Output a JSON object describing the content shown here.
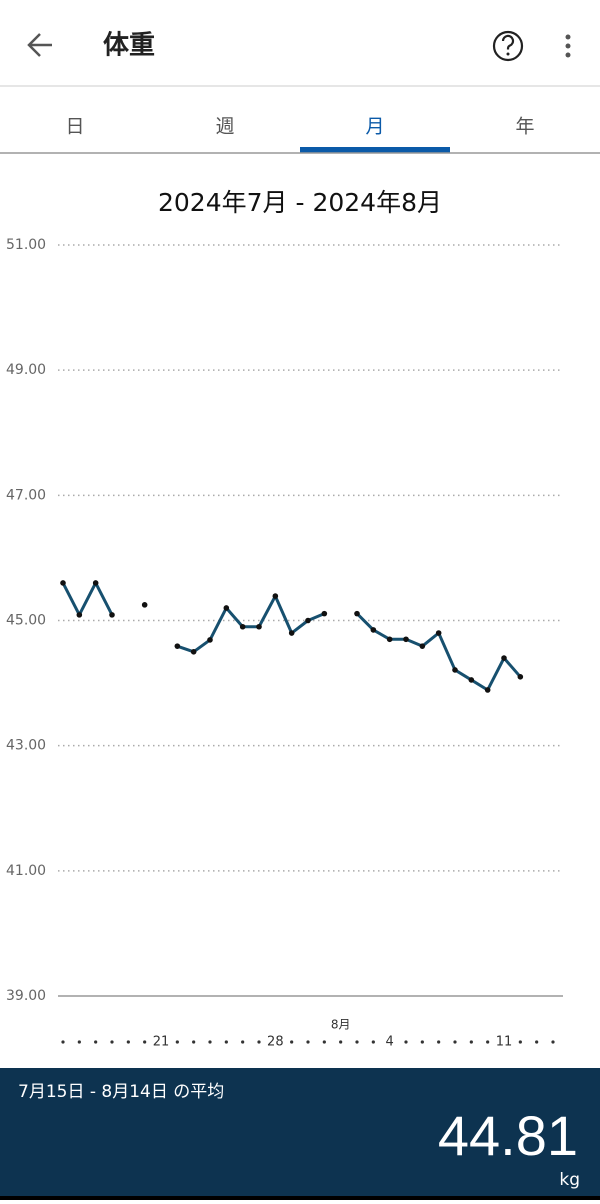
{
  "header": {
    "title": "体重"
  },
  "tabs": [
    "日",
    "週",
    "月",
    "年"
  ],
  "chart_data": {
    "type": "line",
    "title": "2024年7月 - 2024年8月",
    "categories": [
      null,
      null,
      null,
      null,
      null,
      null,
      "21",
      null,
      null,
      null,
      null,
      null,
      null,
      "28",
      null,
      null,
      null,
      null,
      null,
      null,
      "4",
      null,
      null,
      null,
      null,
      null,
      null,
      "11",
      null,
      null,
      null
    ],
    "month_label": "8月",
    "series": [
      {
        "name": null,
        "color": "#17506f",
        "values": [
          45.6,
          45.09,
          45.6,
          45.09,
          null,
          45.25,
          null,
          44.59,
          44.5,
          44.69,
          45.2,
          44.9,
          44.9,
          45.39,
          44.8,
          45.0,
          45.11,
          null,
          45.11,
          44.85,
          44.7,
          44.7,
          44.59,
          44.8,
          44.21,
          44.05,
          43.89,
          44.4,
          44.1,
          null,
          null
        ]
      }
    ],
    "ylim": [
      39,
      51
    ],
    "yticks": [
      {
        "value": 39,
        "label": "39.00"
      },
      {
        "value": 41,
        "label": "41.00"
      },
      {
        "value": 43,
        "label": "43.00"
      },
      {
        "value": 45,
        "label": "45.00"
      },
      {
        "value": 47,
        "label": "47.00"
      },
      {
        "value": 49,
        "label": "49.00"
      },
      {
        "value": 51,
        "label": "51.00"
      }
    ],
    "grid": true
  },
  "summary": {
    "label": "7月15日 - 8月14日 の平均",
    "value": "44.81",
    "unit": "kg"
  }
}
